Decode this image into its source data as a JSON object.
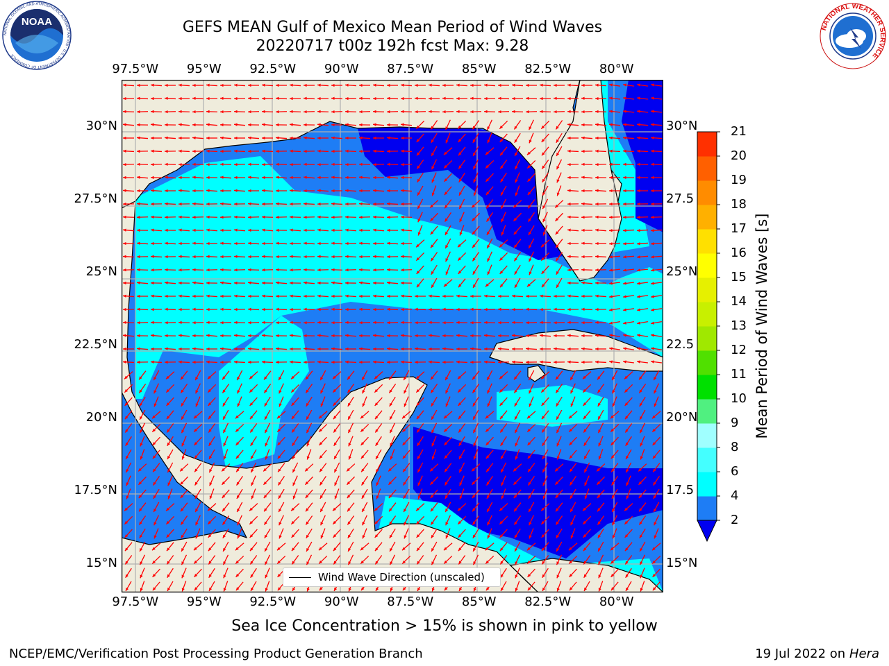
{
  "title": {
    "line1": "GEFS MEAN Gulf of Mexico Mean Period of Wind Waves",
    "line2": "20220717 t00z 192h fcst   Max: 9.28"
  },
  "map": {
    "lon_ticks": [
      "97.5°W",
      "95°W",
      "92.5°W",
      "90°W",
      "87.5°W",
      "85°W",
      "82.5°W",
      "80°W"
    ],
    "lat_ticks_left": [
      "30°N",
      "27.5°N",
      "25°N",
      "22.5°N",
      "20°N",
      "17.5°N",
      "15°N"
    ],
    "lat_ticks_right": [
      "30°N",
      "27.5",
      "25°N",
      "22.5",
      "20°N",
      "17.5",
      "15°N"
    ],
    "lon_values": [
      -97.5,
      -95,
      -92.5,
      -90,
      -87.5,
      -85,
      -82.5,
      -80
    ],
    "lat_values": [
      30,
      27.5,
      25,
      22.5,
      20,
      17.5,
      15
    ],
    "extent": {
      "lon": [
        -98,
        -78.3
      ],
      "lat": [
        14,
        31.6
      ]
    },
    "colors": {
      "land": "#efecdc",
      "ocean_2_4": "#1e7df5",
      "ocean_4_6": "#00ffff",
      "ocean_below_2": "#0000f0",
      "arrow": "#ff0000",
      "grid": "#b0b0b0"
    },
    "legend_label": "Wind Wave Direction (unscaled)"
  },
  "colorbar": {
    "levels": [
      2,
      4,
      6,
      8,
      9,
      10,
      11,
      12,
      13,
      14,
      15,
      16,
      17,
      18,
      19,
      20,
      21
    ],
    "colors": [
      "#1e7df5",
      "#00ffff",
      "#44ffff",
      "#a0ffff",
      "#50f080",
      "#00e000",
      "#50e000",
      "#a0e800",
      "#c8f000",
      "#e6f000",
      "#ffff00",
      "#ffe000",
      "#ffb000",
      "#ff8c00",
      "#ff6000",
      "#ff3000",
      "#ff0000"
    ],
    "under_color": "#0000f0",
    "label": "Mean Period of Wind Waves [s]"
  },
  "notes": {
    "ice": "Sea Ice Concentration > 15% is shown in pink to yellow"
  },
  "footer": {
    "left": "NCEP/EMC/Verification Post Processing Product Generation Branch",
    "right_date": "19 Jul 2022 on ",
    "right_host": "Hera"
  },
  "logos": {
    "noaa": {
      "text": "NOAA",
      "ring_text": "NATIONAL OCEANIC AND ATMOSPHERIC ADMINISTRATION · U.S. DEPARTMENT OF COMMERCE"
    },
    "nws": {
      "ring_text": "NATIONAL WEATHER SERVICE"
    }
  }
}
